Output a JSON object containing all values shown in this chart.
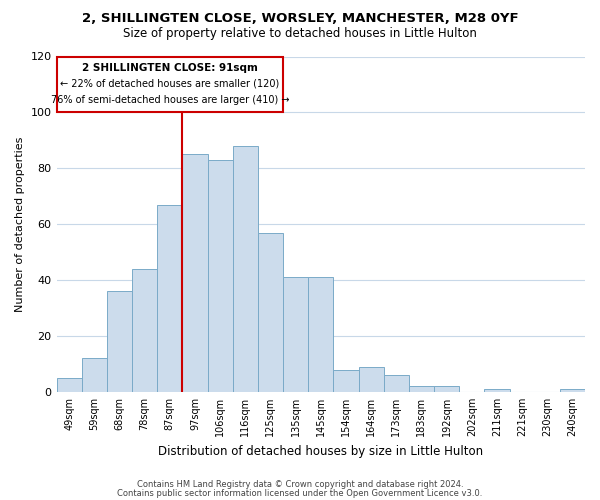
{
  "title1": "2, SHILLINGTEN CLOSE, WORSLEY, MANCHESTER, M28 0YF",
  "title2": "Size of property relative to detached houses in Little Hulton",
  "xlabel": "Distribution of detached houses by size in Little Hulton",
  "ylabel": "Number of detached properties",
  "bin_labels": [
    "49sqm",
    "59sqm",
    "68sqm",
    "78sqm",
    "87sqm",
    "97sqm",
    "106sqm",
    "116sqm",
    "125sqm",
    "135sqm",
    "145sqm",
    "154sqm",
    "164sqm",
    "173sqm",
    "183sqm",
    "192sqm",
    "202sqm",
    "211sqm",
    "221sqm",
    "230sqm",
    "240sqm"
  ],
  "bar_values": [
    5,
    12,
    36,
    44,
    67,
    85,
    83,
    88,
    57,
    41,
    41,
    8,
    9,
    6,
    2,
    2,
    0,
    1,
    0,
    0,
    1
  ],
  "bar_color": "#ccdcec",
  "bar_edge_color": "#7aaac8",
  "vline_color": "#cc0000",
  "annotation_line1": "2 SHILLINGTEN CLOSE: 91sqm",
  "annotation_line2": "← 22% of detached houses are smaller (120)",
  "annotation_line3": "76% of semi-detached houses are larger (410) →",
  "annotation_box_color": "#cc0000",
  "ylim": [
    0,
    120
  ],
  "yticks": [
    0,
    20,
    40,
    60,
    80,
    100,
    120
  ],
  "footer1": "Contains HM Land Registry data © Crown copyright and database right 2024.",
  "footer2": "Contains public sector information licensed under the Open Government Licence v3.0.",
  "bg_color": "#ffffff",
  "grid_color": "#c8d8e8"
}
